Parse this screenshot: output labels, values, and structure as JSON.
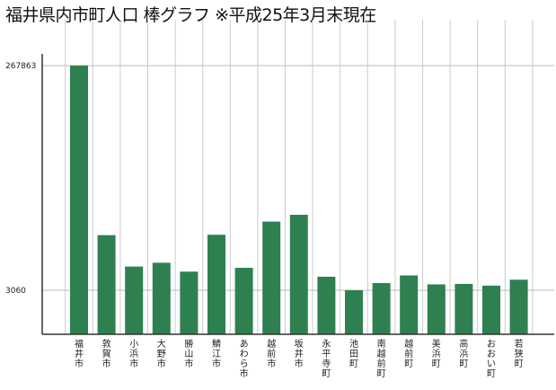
{
  "chart_data": {
    "type": "bar",
    "title": "福井県内市町人口 棒グラフ ※平成25年3月末現在",
    "categories": [
      "福井市",
      "敦賀市",
      "小浜市",
      "大野市",
      "勝山市",
      "鯖江市",
      "あわら市",
      "越前市",
      "坂井市",
      "永平寺町",
      "池田町",
      "南越前町",
      "越前町",
      "美浜町",
      "高浜町",
      "おおい町",
      "若狭町"
    ],
    "values": [
      267863,
      68000,
      31000,
      35500,
      25000,
      68500,
      29500,
      84000,
      92000,
      19000,
      3060,
      11500,
      20500,
      10000,
      10500,
      8500,
      15500
    ],
    "ytick_labels": [
      "267863",
      "3060"
    ],
    "bar_color": "#2e8050",
    "grid": true,
    "xlabel": "",
    "ylabel": ""
  }
}
